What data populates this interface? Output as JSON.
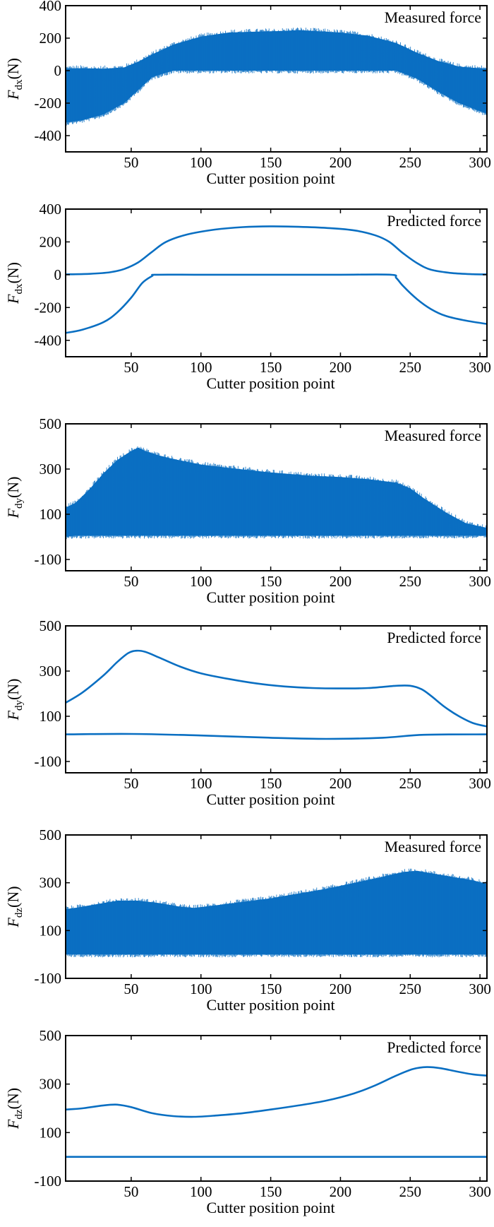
{
  "chart_data": [
    {
      "type": "area",
      "annotation": "Measured force",
      "xlabel": "Cutter position point",
      "ylabel": {
        "symbol": "F",
        "subscript": "dx",
        "unit": "(N)"
      },
      "xlim": [
        3,
        305
      ],
      "ylim": [
        -500,
        400
      ],
      "xticks": [
        50,
        100,
        150,
        200,
        250,
        300
      ],
      "yticks": [
        400,
        200,
        0,
        -200,
        -400
      ],
      "color": "#0a6fc2",
      "series": [
        {
          "x": [
            3,
            15,
            30,
            45,
            55,
            65,
            80,
            100,
            120,
            140,
            160,
            170,
            180,
            200,
            220,
            240,
            255,
            270,
            285,
            300,
            305
          ],
          "upper": [
            15,
            15,
            12,
            20,
            55,
            100,
            160,
            210,
            235,
            240,
            245,
            250,
            245,
            235,
            215,
            170,
            110,
            60,
            25,
            15,
            15
          ],
          "lower": [
            -320,
            -305,
            -270,
            -200,
            -120,
            -40,
            0,
            0,
            0,
            0,
            0,
            0,
            0,
            0,
            0,
            0,
            -50,
            -130,
            -200,
            -250,
            -265
          ]
        }
      ]
    },
    {
      "type": "line",
      "annotation": "Predicted force",
      "xlabel": "Cutter position point",
      "ylabel": {
        "symbol": "F",
        "subscript": "dx",
        "unit": "(N)"
      },
      "xlim": [
        3,
        305
      ],
      "ylim": [
        -500,
        400
      ],
      "xticks": [
        50,
        100,
        150,
        200,
        250,
        300
      ],
      "yticks": [
        400,
        200,
        0,
        -200,
        -400
      ],
      "color": "#0a6fc2",
      "series": [
        {
          "x": [
            3,
            20,
            35,
            45,
            55,
            65,
            75,
            90,
            110,
            130,
            150,
            170,
            190,
            210,
            225,
            235,
            245,
            255,
            265,
            280,
            295,
            305
          ],
          "y": [
            2,
            5,
            15,
            35,
            75,
            140,
            200,
            245,
            275,
            290,
            295,
            292,
            285,
            270,
            240,
            200,
            130,
            70,
            30,
            10,
            3,
            2
          ]
        },
        {
          "x": [
            3,
            15,
            30,
            40,
            50,
            58,
            65,
            68,
            100,
            150,
            200,
            236,
            240,
            245,
            255,
            265,
            275,
            290,
            305
          ],
          "y": [
            -355,
            -335,
            -290,
            -230,
            -140,
            -50,
            -8,
            0,
            0,
            0,
            0,
            0,
            -20,
            -70,
            -150,
            -210,
            -250,
            -280,
            -300
          ]
        }
      ]
    },
    {
      "type": "area",
      "annotation": "Measured force",
      "xlabel": "Cutter position point",
      "ylabel": {
        "symbol": "F",
        "subscript": "dy",
        "unit": "(N)"
      },
      "xlim": [
        3,
        305
      ],
      "ylim": [
        -150,
        500
      ],
      "xticks": [
        50,
        100,
        150,
        200,
        250,
        300
      ],
      "yticks": [
        500,
        300,
        100,
        -100
      ],
      "color": "#0a6fc2",
      "series": [
        {
          "x": [
            3,
            10,
            20,
            30,
            40,
            50,
            55,
            60,
            70,
            80,
            100,
            120,
            150,
            180,
            200,
            220,
            240,
            250,
            260,
            275,
            290,
            305
          ],
          "upper": [
            130,
            150,
            210,
            280,
            340,
            380,
            395,
            380,
            360,
            345,
            320,
            305,
            285,
            270,
            265,
            255,
            240,
            215,
            170,
            110,
            60,
            40
          ],
          "lower": [
            0,
            5,
            5,
            5,
            5,
            5,
            5,
            5,
            5,
            5,
            5,
            5,
            5,
            5,
            5,
            5,
            5,
            5,
            5,
            5,
            5,
            5
          ]
        }
      ]
    },
    {
      "type": "line",
      "annotation": "Predicted force",
      "xlabel": "Cutter position point",
      "ylabel": {
        "symbol": "F",
        "subscript": "dy",
        "unit": "(N)"
      },
      "xlim": [
        3,
        305
      ],
      "ylim": [
        -150,
        500
      ],
      "xticks": [
        50,
        100,
        150,
        200,
        250,
        300
      ],
      "yticks": [
        500,
        300,
        100,
        -100
      ],
      "color": "#0a6fc2",
      "series": [
        {
          "x": [
            3,
            15,
            30,
            40,
            48,
            54,
            60,
            70,
            85,
            100,
            120,
            140,
            160,
            180,
            200,
            220,
            240,
            250,
            258,
            265,
            275,
            285,
            295,
            305
          ],
          "y": [
            160,
            205,
            280,
            340,
            380,
            390,
            385,
            360,
            320,
            290,
            265,
            245,
            232,
            225,
            223,
            225,
            235,
            235,
            220,
            190,
            140,
            100,
            70,
            55
          ]
        },
        {
          "x": [
            3,
            50,
            100,
            150,
            190,
            230,
            260,
            305
          ],
          "y": [
            20,
            22,
            15,
            5,
            0,
            5,
            18,
            20
          ]
        }
      ]
    },
    {
      "type": "area",
      "annotation": "Measured force",
      "xlabel": "Cutter position point",
      "ylabel": {
        "symbol": "F",
        "subscript": "dz",
        "unit": "(N)"
      },
      "xlim": [
        3,
        305
      ],
      "ylim": [
        -100,
        500
      ],
      "xticks": [
        50,
        100,
        150,
        200,
        250,
        300
      ],
      "yticks": [
        500,
        300,
        100,
        -100
      ],
      "color": "#0a6fc2",
      "series": [
        {
          "x": [
            3,
            10,
            25,
            40,
            55,
            70,
            85,
            95,
            110,
            130,
            150,
            170,
            190,
            210,
            230,
            245,
            255,
            265,
            280,
            295,
            305
          ],
          "upper": [
            190,
            195,
            210,
            225,
            225,
            215,
            200,
            195,
            205,
            220,
            235,
            255,
            275,
            300,
            325,
            345,
            350,
            340,
            325,
            310,
            295
          ],
          "lower": [
            0,
            0,
            0,
            0,
            0,
            0,
            0,
            0,
            0,
            0,
            0,
            0,
            0,
            0,
            0,
            0,
            0,
            0,
            0,
            0,
            0
          ]
        }
      ]
    },
    {
      "type": "line",
      "annotation": "Predicted force",
      "xlabel": "Cutter position point",
      "ylabel": {
        "symbol": "F",
        "subscript": "dz",
        "unit": "(N)"
      },
      "xlim": [
        3,
        305
      ],
      "ylim": [
        -100,
        500
      ],
      "xticks": [
        50,
        100,
        150,
        200,
        250,
        300
      ],
      "yticks": [
        500,
        300,
        100,
        -100
      ],
      "color": "#0a6fc2",
      "series": [
        {
          "x": [
            3,
            15,
            30,
            40,
            50,
            65,
            80,
            95,
            110,
            130,
            150,
            170,
            190,
            210,
            225,
            240,
            252,
            262,
            272,
            285,
            295,
            305
          ],
          "y": [
            195,
            200,
            212,
            215,
            205,
            180,
            168,
            165,
            170,
            180,
            195,
            212,
            232,
            262,
            295,
            335,
            362,
            370,
            365,
            350,
            340,
            335
          ]
        },
        {
          "x": [
            3,
            305
          ],
          "y": [
            0,
            0
          ]
        }
      ]
    }
  ]
}
